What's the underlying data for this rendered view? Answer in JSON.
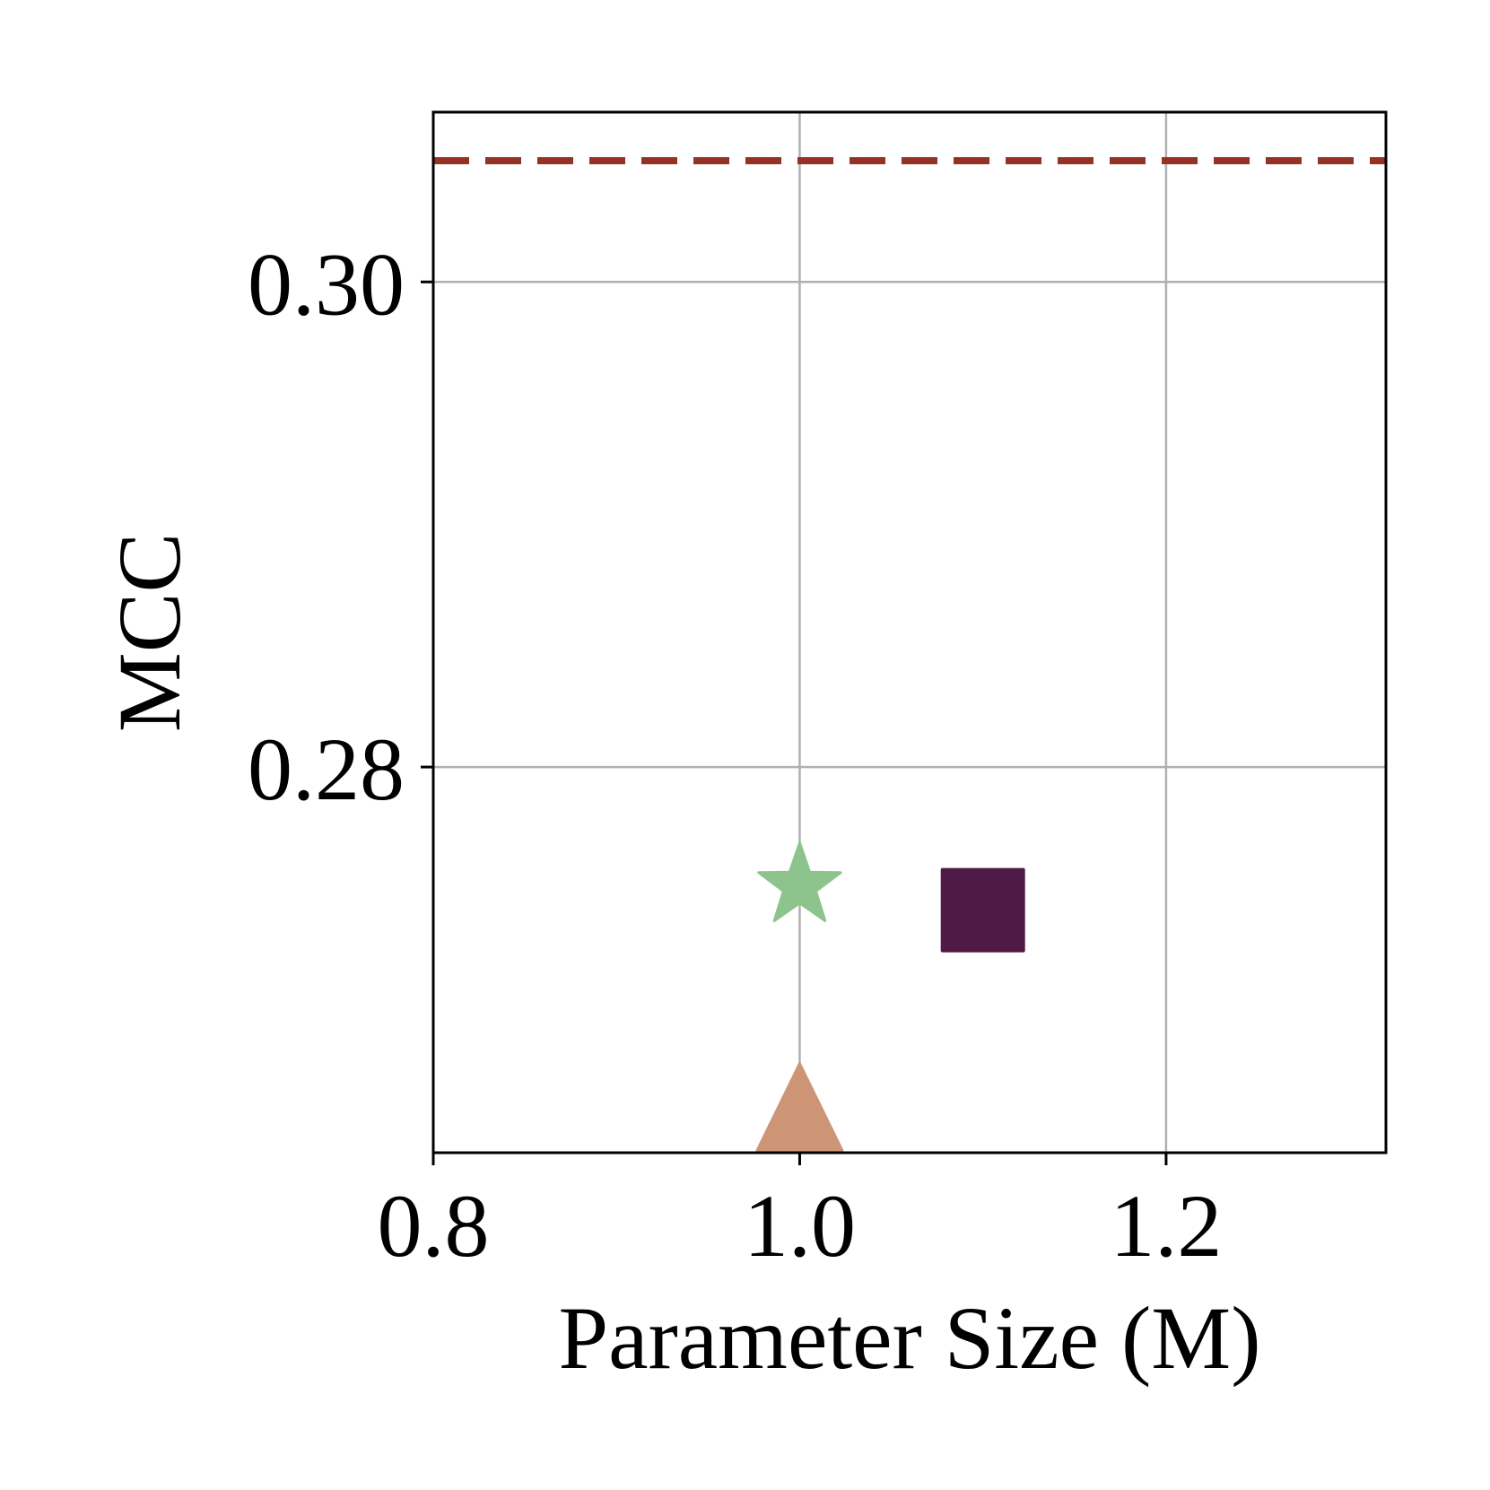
{
  "chart_data": {
    "type": "scatter",
    "title": "",
    "xlabel": "Parameter Size (M)",
    "ylabel": "MCC",
    "xlim": [
      0.8,
      1.32
    ],
    "ylim": [
      0.2641,
      0.307
    ],
    "xticks": [
      0.8,
      1.0,
      1.2
    ],
    "xtick_labels": [
      "0.8",
      "1.0",
      "1.2"
    ],
    "yticks": [
      0.28,
      0.3
    ],
    "ytick_labels": [
      "0.28",
      "0.30"
    ],
    "grid": true,
    "legend": "none",
    "points": [
      {
        "x": 1.0,
        "y": 0.2751,
        "marker": "star",
        "color": "#8dc38c"
      },
      {
        "x": 1.1,
        "y": 0.2741,
        "marker": "square",
        "color": "#4f1a45"
      },
      {
        "x": 1.0,
        "y": 0.2653,
        "marker": "triangle",
        "color": "#cd9576"
      }
    ],
    "reference_lines": [
      {
        "y": 0.305,
        "style": "dashed",
        "color": "#963125"
      }
    ]
  }
}
